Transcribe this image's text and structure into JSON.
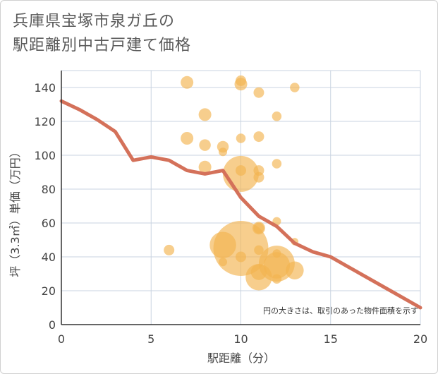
{
  "chart_data": {
    "type": "scatter",
    "title_line1": "兵庫県宝塚市泉ガ丘の",
    "title_line2": "駅距離別中古戸建て価格",
    "xlabel": "駅距離（分）",
    "ylabel": "坪（3.3㎡）単価（万円）",
    "xlim": [
      0,
      20
    ],
    "ylim": [
      0,
      150
    ],
    "xticks": [
      0,
      5,
      10,
      15,
      20
    ],
    "yticks": [
      0,
      20,
      40,
      60,
      80,
      100,
      120,
      140
    ],
    "grid": true,
    "note": "円の大きさは、取引のあった物件面積を示す",
    "colors": {
      "bubble": "#f2b350",
      "line": "#d4715a",
      "grid": "#c9d3e0"
    },
    "bubbles": [
      {
        "x": 6,
        "y": 44,
        "s": 1
      },
      {
        "x": 7,
        "y": 143,
        "s": 1.2
      },
      {
        "x": 7,
        "y": 110,
        "s": 1.2
      },
      {
        "x": 8,
        "y": 124,
        "s": 1.2
      },
      {
        "x": 8,
        "y": 106,
        "s": 1.1
      },
      {
        "x": 8,
        "y": 93,
        "s": 1.2
      },
      {
        "x": 9,
        "y": 105,
        "s": 1.1
      },
      {
        "x": 9,
        "y": 102,
        "s": 0.8
      },
      {
        "x": 9,
        "y": 47,
        "s": 2.5
      },
      {
        "x": 9,
        "y": 37,
        "s": 0.8
      },
      {
        "x": 10,
        "y": 144,
        "s": 1
      },
      {
        "x": 10,
        "y": 142,
        "s": 1.2
      },
      {
        "x": 10,
        "y": 110,
        "s": 0.9
      },
      {
        "x": 10,
        "y": 91,
        "s": 1
      },
      {
        "x": 10,
        "y": 89,
        "s": 3.4
      },
      {
        "x": 10,
        "y": 45,
        "s": 5.2
      },
      {
        "x": 10,
        "y": 40,
        "s": 1
      },
      {
        "x": 11,
        "y": 137,
        "s": 1
      },
      {
        "x": 11,
        "y": 111,
        "s": 1
      },
      {
        "x": 11,
        "y": 91,
        "s": 1
      },
      {
        "x": 11,
        "y": 87,
        "s": 1
      },
      {
        "x": 11,
        "y": 57,
        "s": 1.2
      },
      {
        "x": 11,
        "y": 57,
        "s": 1
      },
      {
        "x": 11,
        "y": 44,
        "s": 0.9
      },
      {
        "x": 11,
        "y": 31,
        "s": 1.5
      },
      {
        "x": 11,
        "y": 28,
        "s": 2.5
      },
      {
        "x": 12,
        "y": 123,
        "s": 0.9
      },
      {
        "x": 12,
        "y": 95,
        "s": 0.9
      },
      {
        "x": 12,
        "y": 61,
        "s": 0.8
      },
      {
        "x": 12,
        "y": 42,
        "s": 0.8
      },
      {
        "x": 12,
        "y": 36,
        "s": 3.4
      },
      {
        "x": 12,
        "y": 35,
        "s": 2.5
      },
      {
        "x": 12,
        "y": 27,
        "s": 0.9
      },
      {
        "x": 13,
        "y": 140,
        "s": 0.9
      },
      {
        "x": 13,
        "y": 49,
        "s": 0.7
      },
      {
        "x": 13,
        "y": 32,
        "s": 1.7
      }
    ],
    "trend": {
      "x": [
        0,
        1,
        2,
        3,
        4,
        5,
        6,
        7,
        8,
        9,
        10,
        11,
        12,
        13,
        14,
        15,
        16,
        17,
        18,
        19,
        20
      ],
      "y": [
        132,
        127,
        121,
        114,
        97,
        99,
        97,
        91,
        89,
        91,
        75,
        64,
        58,
        48,
        43,
        40,
        34,
        28,
        22,
        16,
        10
      ]
    }
  }
}
